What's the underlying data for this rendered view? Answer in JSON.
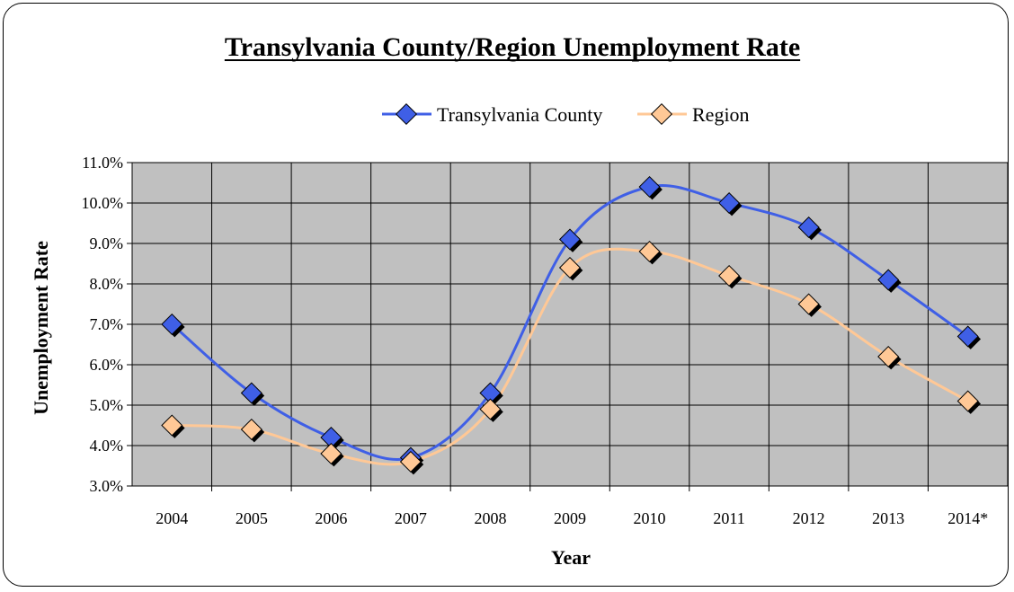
{
  "chart_data": {
    "type": "line",
    "title": "Transylvania County/Region Unemployment Rate",
    "xlabel": "Year",
    "ylabel": "Unemployment Rate",
    "categories": [
      "2004",
      "2005",
      "2006",
      "2007",
      "2008",
      "2009",
      "2010",
      "2011",
      "2012",
      "2013",
      "2014*"
    ],
    "ylim": [
      3.0,
      11.0
    ],
    "yticks": [
      "3.0%",
      "4.0%",
      "5.0%",
      "6.0%",
      "7.0%",
      "8.0%",
      "9.0%",
      "10.0%",
      "11.0%"
    ],
    "grid": true,
    "legend_position": "top",
    "series": [
      {
        "name": "Transylvania County",
        "color": "#3F5FE6",
        "marker_fill": "#3F5FE6",
        "values": [
          7.0,
          5.3,
          4.2,
          3.7,
          5.3,
          9.1,
          10.4,
          10.0,
          9.4,
          8.1,
          6.7
        ]
      },
      {
        "name": "Region",
        "color": "#FFC896",
        "marker_fill": "#FFC896",
        "values": [
          4.5,
          4.4,
          3.8,
          3.6,
          4.9,
          8.4,
          8.8,
          8.2,
          7.5,
          6.2,
          5.1
        ]
      }
    ],
    "plot_background": "#C0C0C0"
  }
}
